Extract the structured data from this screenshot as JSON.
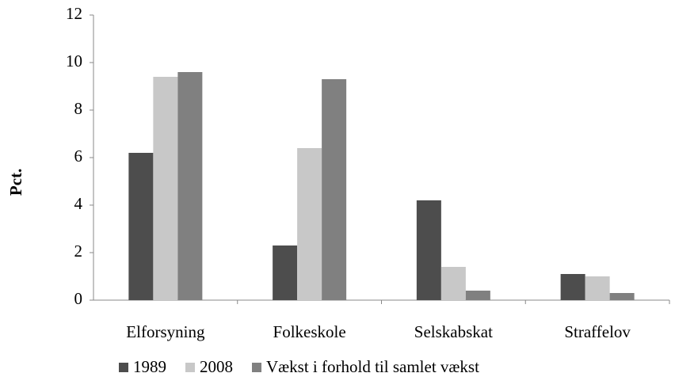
{
  "chart_data": {
    "type": "bar",
    "y_label": "Pct.",
    "categories": [
      "Elforsyning",
      "Folkeskole",
      "Selskabskat",
      "Straffelov"
    ],
    "series": [
      {
        "name": "1989",
        "color": "#4d4d4d",
        "values": [
          6.2,
          2.3,
          4.2,
          1.1
        ]
      },
      {
        "name": "2008",
        "color": "#c8c8c8",
        "values": [
          9.4,
          6.4,
          1.4,
          1.0
        ]
      },
      {
        "name": "Vækst i forhold til samlet vækst",
        "color": "#808080",
        "values": [
          9.6,
          9.3,
          0.4,
          0.3
        ]
      }
    ],
    "ylim": [
      0,
      12
    ],
    "yticks": [
      0,
      2,
      4,
      6,
      8,
      10,
      12
    ],
    "grid": false,
    "legend": "bottom"
  }
}
